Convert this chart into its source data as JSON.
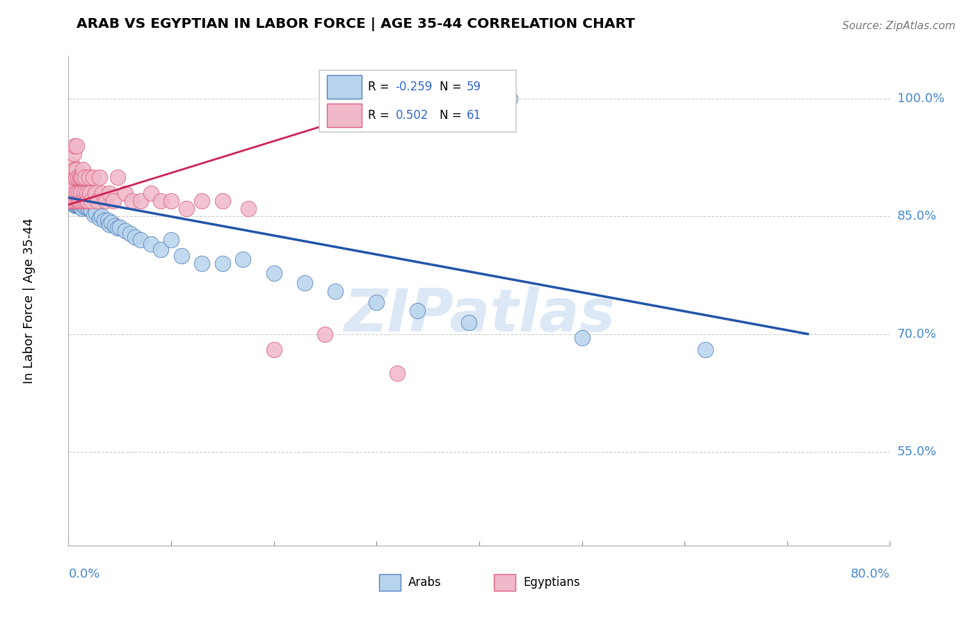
{
  "title": "ARAB VS EGYPTIAN IN LABOR FORCE | AGE 35-44 CORRELATION CHART",
  "source": "Source: ZipAtlas.com",
  "ylabel": "In Labor Force | Age 35-44",
  "yticks": [
    0.55,
    0.7,
    0.85,
    1.0
  ],
  "ytick_labels": [
    "55.0%",
    "70.0%",
    "85.0%",
    "100.0%"
  ],
  "xmin": 0.0,
  "xmax": 0.8,
  "ymin": 0.43,
  "ymax": 1.055,
  "arab_R": "-0.259",
  "arab_N": "59",
  "egyptian_R": "0.502",
  "egyptian_N": "61",
  "arab_color": "#b8d4ed",
  "arab_edge_color": "#5580bb",
  "egyptian_color": "#f0b8c8",
  "egyptian_edge_color": "#dd6080",
  "arab_line_color": "#2255aa",
  "egyptian_line_color": "#cc2255",
  "watermark": "ZIPatlas",
  "watermark_color": "#dce8f5",
  "arab_x": [
    0.002,
    0.003,
    0.004,
    0.004,
    0.005,
    0.005,
    0.006,
    0.006,
    0.007,
    0.007,
    0.008,
    0.008,
    0.009,
    0.009,
    0.01,
    0.01,
    0.011,
    0.012,
    0.012,
    0.013,
    0.013,
    0.014,
    0.015,
    0.016,
    0.017,
    0.018,
    0.02,
    0.022,
    0.025,
    0.027,
    0.03,
    0.032,
    0.035,
    0.038,
    0.04,
    0.042,
    0.045,
    0.048,
    0.05,
    0.055,
    0.06,
    0.065,
    0.07,
    0.08,
    0.09,
    0.1,
    0.11,
    0.13,
    0.15,
    0.17,
    0.2,
    0.23,
    0.26,
    0.3,
    0.34,
    0.39,
    0.43,
    0.5,
    0.62
  ],
  "arab_y": [
    0.875,
    0.87,
    0.875,
    0.87,
    0.875,
    0.868,
    0.873,
    0.865,
    0.87,
    0.864,
    0.872,
    0.865,
    0.87,
    0.864,
    0.872,
    0.865,
    0.866,
    0.87,
    0.862,
    0.868,
    0.86,
    0.865,
    0.868,
    0.862,
    0.868,
    0.862,
    0.86,
    0.858,
    0.852,
    0.855,
    0.848,
    0.85,
    0.845,
    0.845,
    0.84,
    0.842,
    0.838,
    0.835,
    0.836,
    0.832,
    0.828,
    0.824,
    0.82,
    0.815,
    0.808,
    0.82,
    0.8,
    0.79,
    0.79,
    0.795,
    0.778,
    0.765,
    0.755,
    0.74,
    0.73,
    0.715,
    1.0,
    0.695,
    0.68
  ],
  "egyptian_x": [
    0.001,
    0.002,
    0.002,
    0.003,
    0.003,
    0.004,
    0.004,
    0.004,
    0.005,
    0.005,
    0.005,
    0.006,
    0.006,
    0.006,
    0.007,
    0.007,
    0.008,
    0.008,
    0.008,
    0.009,
    0.009,
    0.01,
    0.01,
    0.011,
    0.011,
    0.012,
    0.012,
    0.013,
    0.013,
    0.014,
    0.015,
    0.015,
    0.016,
    0.017,
    0.018,
    0.019,
    0.02,
    0.021,
    0.022,
    0.024,
    0.026,
    0.028,
    0.03,
    0.033,
    0.036,
    0.04,
    0.044,
    0.048,
    0.055,
    0.062,
    0.07,
    0.08,
    0.09,
    0.1,
    0.115,
    0.13,
    0.15,
    0.175,
    0.2,
    0.25,
    0.32
  ],
  "egyptian_y": [
    0.87,
    0.885,
    0.9,
    0.87,
    0.9,
    0.915,
    0.885,
    0.87,
    0.93,
    0.9,
    0.87,
    0.94,
    0.91,
    0.88,
    0.87,
    0.9,
    0.94,
    0.91,
    0.88,
    0.87,
    0.9,
    0.88,
    0.87,
    0.9,
    0.87,
    0.88,
    0.9,
    0.87,
    0.9,
    0.91,
    0.88,
    0.87,
    0.9,
    0.87,
    0.88,
    0.87,
    0.9,
    0.88,
    0.87,
    0.9,
    0.88,
    0.87,
    0.9,
    0.88,
    0.87,
    0.88,
    0.87,
    0.9,
    0.88,
    0.87,
    0.87,
    0.88,
    0.87,
    0.87,
    0.86,
    0.87,
    0.87,
    0.86,
    0.68,
    0.7,
    0.65
  ],
  "arab_line_x0": 0.0,
  "arab_line_x1": 0.72,
  "arab_line_y0": 0.874,
  "arab_line_y1": 0.7,
  "egy_line_x0": 0.0,
  "egy_line_x1": 0.345,
  "egy_line_y0": 0.865,
  "egy_line_y1": 1.005
}
